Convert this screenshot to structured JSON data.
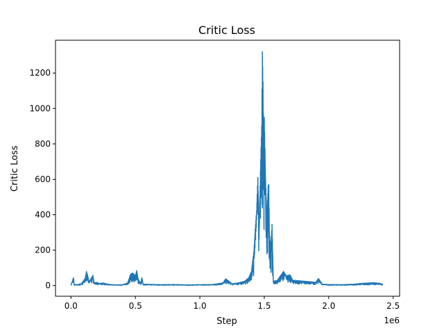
{
  "chart_data": {
    "type": "line",
    "title": "Critic Loss",
    "xlabel": "Step",
    "ylabel": "Critic Loss",
    "x_offset_label": "1e6",
    "xlim": [
      -0.12,
      2.55
    ],
    "ylim": [
      -60,
      1385
    ],
    "x_ticks": [
      {
        "value": 0.0,
        "label": "0.0"
      },
      {
        "value": 0.5,
        "label": "0.5"
      },
      {
        "value": 1.0,
        "label": "1.0"
      },
      {
        "value": 1.5,
        "label": "1.5"
      },
      {
        "value": 2.0,
        "label": "2.0"
      },
      {
        "value": 2.5,
        "label": "2.5"
      }
    ],
    "y_ticks": [
      {
        "value": 0,
        "label": "0"
      },
      {
        "value": 200,
        "label": "200"
      },
      {
        "value": 400,
        "label": "400"
      },
      {
        "value": 600,
        "label": "600"
      },
      {
        "value": 800,
        "label": "800"
      },
      {
        "value": 1000,
        "label": "1000"
      },
      {
        "value": 1200,
        "label": "1200"
      }
    ],
    "grid": false,
    "series": [
      {
        "color": "#1f77b4",
        "points": [
          [
            0.0,
            2
          ],
          [
            0.02,
            45
          ],
          [
            0.025,
            4
          ],
          [
            0.05,
            6
          ],
          [
            0.08,
            10
          ],
          [
            0.1,
            30
          ],
          [
            0.11,
            40
          ],
          [
            0.12,
            80
          ],
          [
            0.13,
            55
          ],
          [
            0.14,
            20
          ],
          [
            0.16,
            45
          ],
          [
            0.17,
            58
          ],
          [
            0.18,
            15
          ],
          [
            0.2,
            18
          ],
          [
            0.22,
            12
          ],
          [
            0.25,
            14
          ],
          [
            0.3,
            6
          ],
          [
            0.35,
            4
          ],
          [
            0.4,
            5
          ],
          [
            0.44,
            15
          ],
          [
            0.46,
            60
          ],
          [
            0.47,
            68
          ],
          [
            0.48,
            70
          ],
          [
            0.5,
            55
          ],
          [
            0.51,
            85
          ],
          [
            0.52,
            40
          ],
          [
            0.54,
            10
          ],
          [
            0.55,
            45
          ],
          [
            0.56,
            8
          ],
          [
            0.6,
            7
          ],
          [
            0.7,
            5
          ],
          [
            0.8,
            6
          ],
          [
            0.9,
            4
          ],
          [
            1.0,
            5
          ],
          [
            1.1,
            6
          ],
          [
            1.18,
            15
          ],
          [
            1.2,
            38
          ],
          [
            1.22,
            28
          ],
          [
            1.25,
            10
          ],
          [
            1.3,
            15
          ],
          [
            1.35,
            25
          ],
          [
            1.38,
            45
          ],
          [
            1.4,
            80
          ],
          [
            1.42,
            200
          ],
          [
            1.43,
            320
          ],
          [
            1.44,
            420
          ],
          [
            1.45,
            610
          ],
          [
            1.46,
            300
          ],
          [
            1.47,
            650
          ],
          [
            1.48,
            900
          ],
          [
            1.485,
            1320
          ],
          [
            1.49,
            1150
          ],
          [
            1.495,
            800
          ],
          [
            1.5,
            950
          ],
          [
            1.51,
            600
          ],
          [
            1.52,
            400
          ],
          [
            1.53,
            560
          ],
          [
            1.535,
            570
          ],
          [
            1.54,
            300
          ],
          [
            1.55,
            200
          ],
          [
            1.56,
            345
          ],
          [
            1.57,
            25
          ],
          [
            1.6,
            28
          ],
          [
            1.65,
            80
          ],
          [
            1.67,
            55
          ],
          [
            1.7,
            60
          ],
          [
            1.72,
            30
          ],
          [
            1.8,
            25
          ],
          [
            1.85,
            22
          ],
          [
            1.9,
            18
          ],
          [
            1.92,
            40
          ],
          [
            1.95,
            8
          ],
          [
            2.0,
            6
          ],
          [
            2.1,
            5
          ],
          [
            2.2,
            8
          ],
          [
            2.25,
            12
          ],
          [
            2.3,
            14
          ],
          [
            2.35,
            16
          ],
          [
            2.4,
            12
          ],
          [
            2.42,
            6
          ]
        ]
      }
    ]
  }
}
